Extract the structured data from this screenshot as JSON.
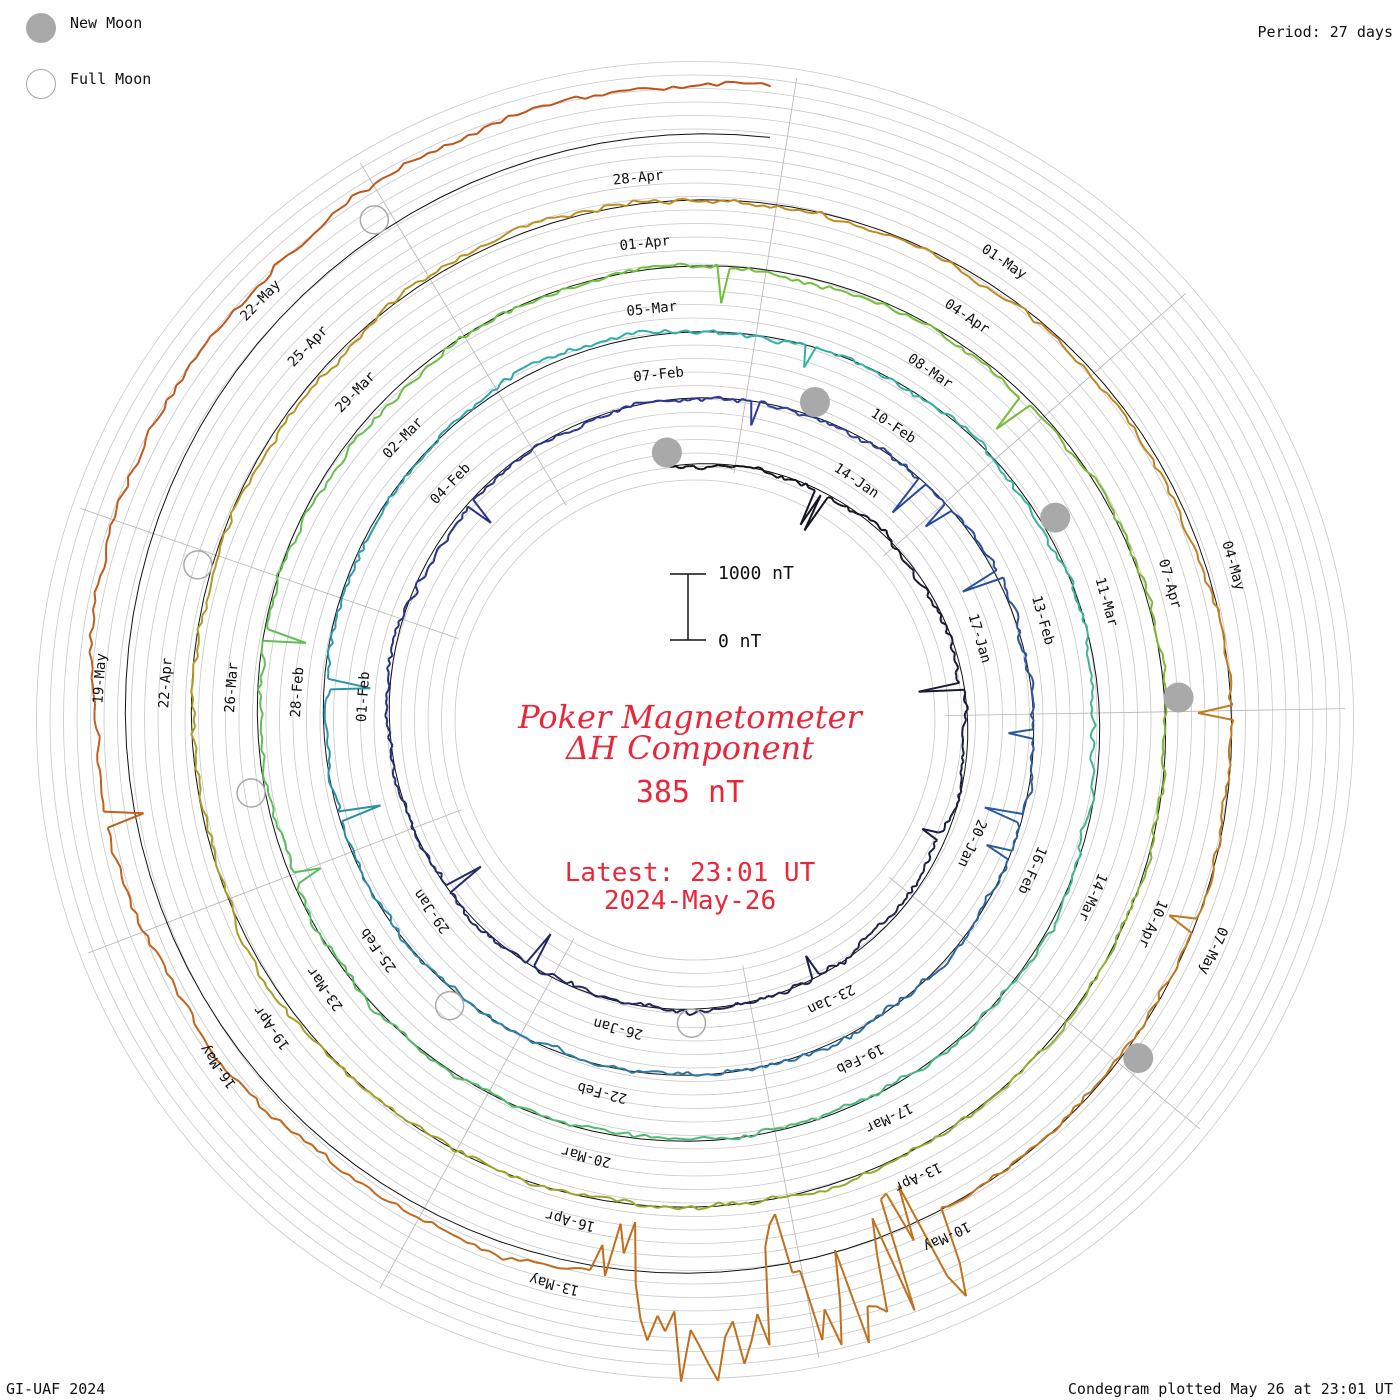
{
  "legend": {
    "new_moon_label": "New Moon",
    "full_moon_label": "Full Moon"
  },
  "period_label": "Period: 27 days",
  "scale_bar": {
    "top_label": "1000 nT",
    "bottom_label": "0 nT"
  },
  "title_line1": "Poker Magnetometer",
  "title_line2": "ΔH Component",
  "current_value": "385 nT",
  "latest_line1": "Latest: 23:01 UT",
  "latest_line2": "2024-May-26",
  "footer_left": "GI-UAF 2024",
  "footer_right": "Condegram plotted May 26 at 23:01 UT",
  "colors": {
    "accent": "#e8283a",
    "moon_fill": "#a9a9a9",
    "grid": "#c8c8c8",
    "spokes": "#b4b4b4"
  },
  "chart_data": {
    "type": "line",
    "subtype": "condegram-spiral",
    "period_days": 27,
    "start_date": "2024-01-11",
    "end_date": "2024-May-26 23:01 UT",
    "scale_nT": [
      0,
      1000
    ],
    "rings": [
      {
        "color": "#111111",
        "date_labels": [
          "14-Jan",
          "17-Jan",
          "20-Jan",
          "23-Jan",
          "26-Jan",
          "29-Jan",
          "01-Feb",
          "04-Feb",
          "07-Feb"
        ]
      },
      {
        "color": "#2a3599",
        "date_labels": [
          "10-Feb",
          "13-Feb",
          "16-Feb",
          "19-Feb",
          "22-Feb",
          "25-Feb",
          "28-Feb",
          "02-Mar",
          "05-Mar"
        ]
      },
      {
        "color": "#2bb0b0",
        "date_labels": [
          "08-Mar",
          "11-Mar",
          "14-Mar",
          "17-Mar",
          "20-Mar",
          "23-Mar",
          "26-Mar",
          "29-Mar",
          "01-Apr"
        ]
      },
      {
        "color": "#6cc23a",
        "date_labels": [
          "04-Apr",
          "07-Apr",
          "10-Apr",
          "13-Apr",
          "16-Apr",
          "19-Apr",
          "22-Apr",
          "25-Apr",
          "28-Apr"
        ]
      },
      {
        "color": "#c08e1e",
        "date_labels": [
          "01-May",
          "04-May",
          "07-May",
          "10-May",
          "13-May",
          "16-May",
          "19-May",
          "22-May"
        ]
      }
    ],
    "storm_interval": "10-May to 12-May",
    "new_moons": [
      "11-Jan",
      "09-Feb",
      "10-Mar",
      "08-Apr",
      "08-May"
    ],
    "full_moons": [
      "25-Jan",
      "24-Feb",
      "25-Mar",
      "23-Apr",
      "23-May"
    ]
  }
}
